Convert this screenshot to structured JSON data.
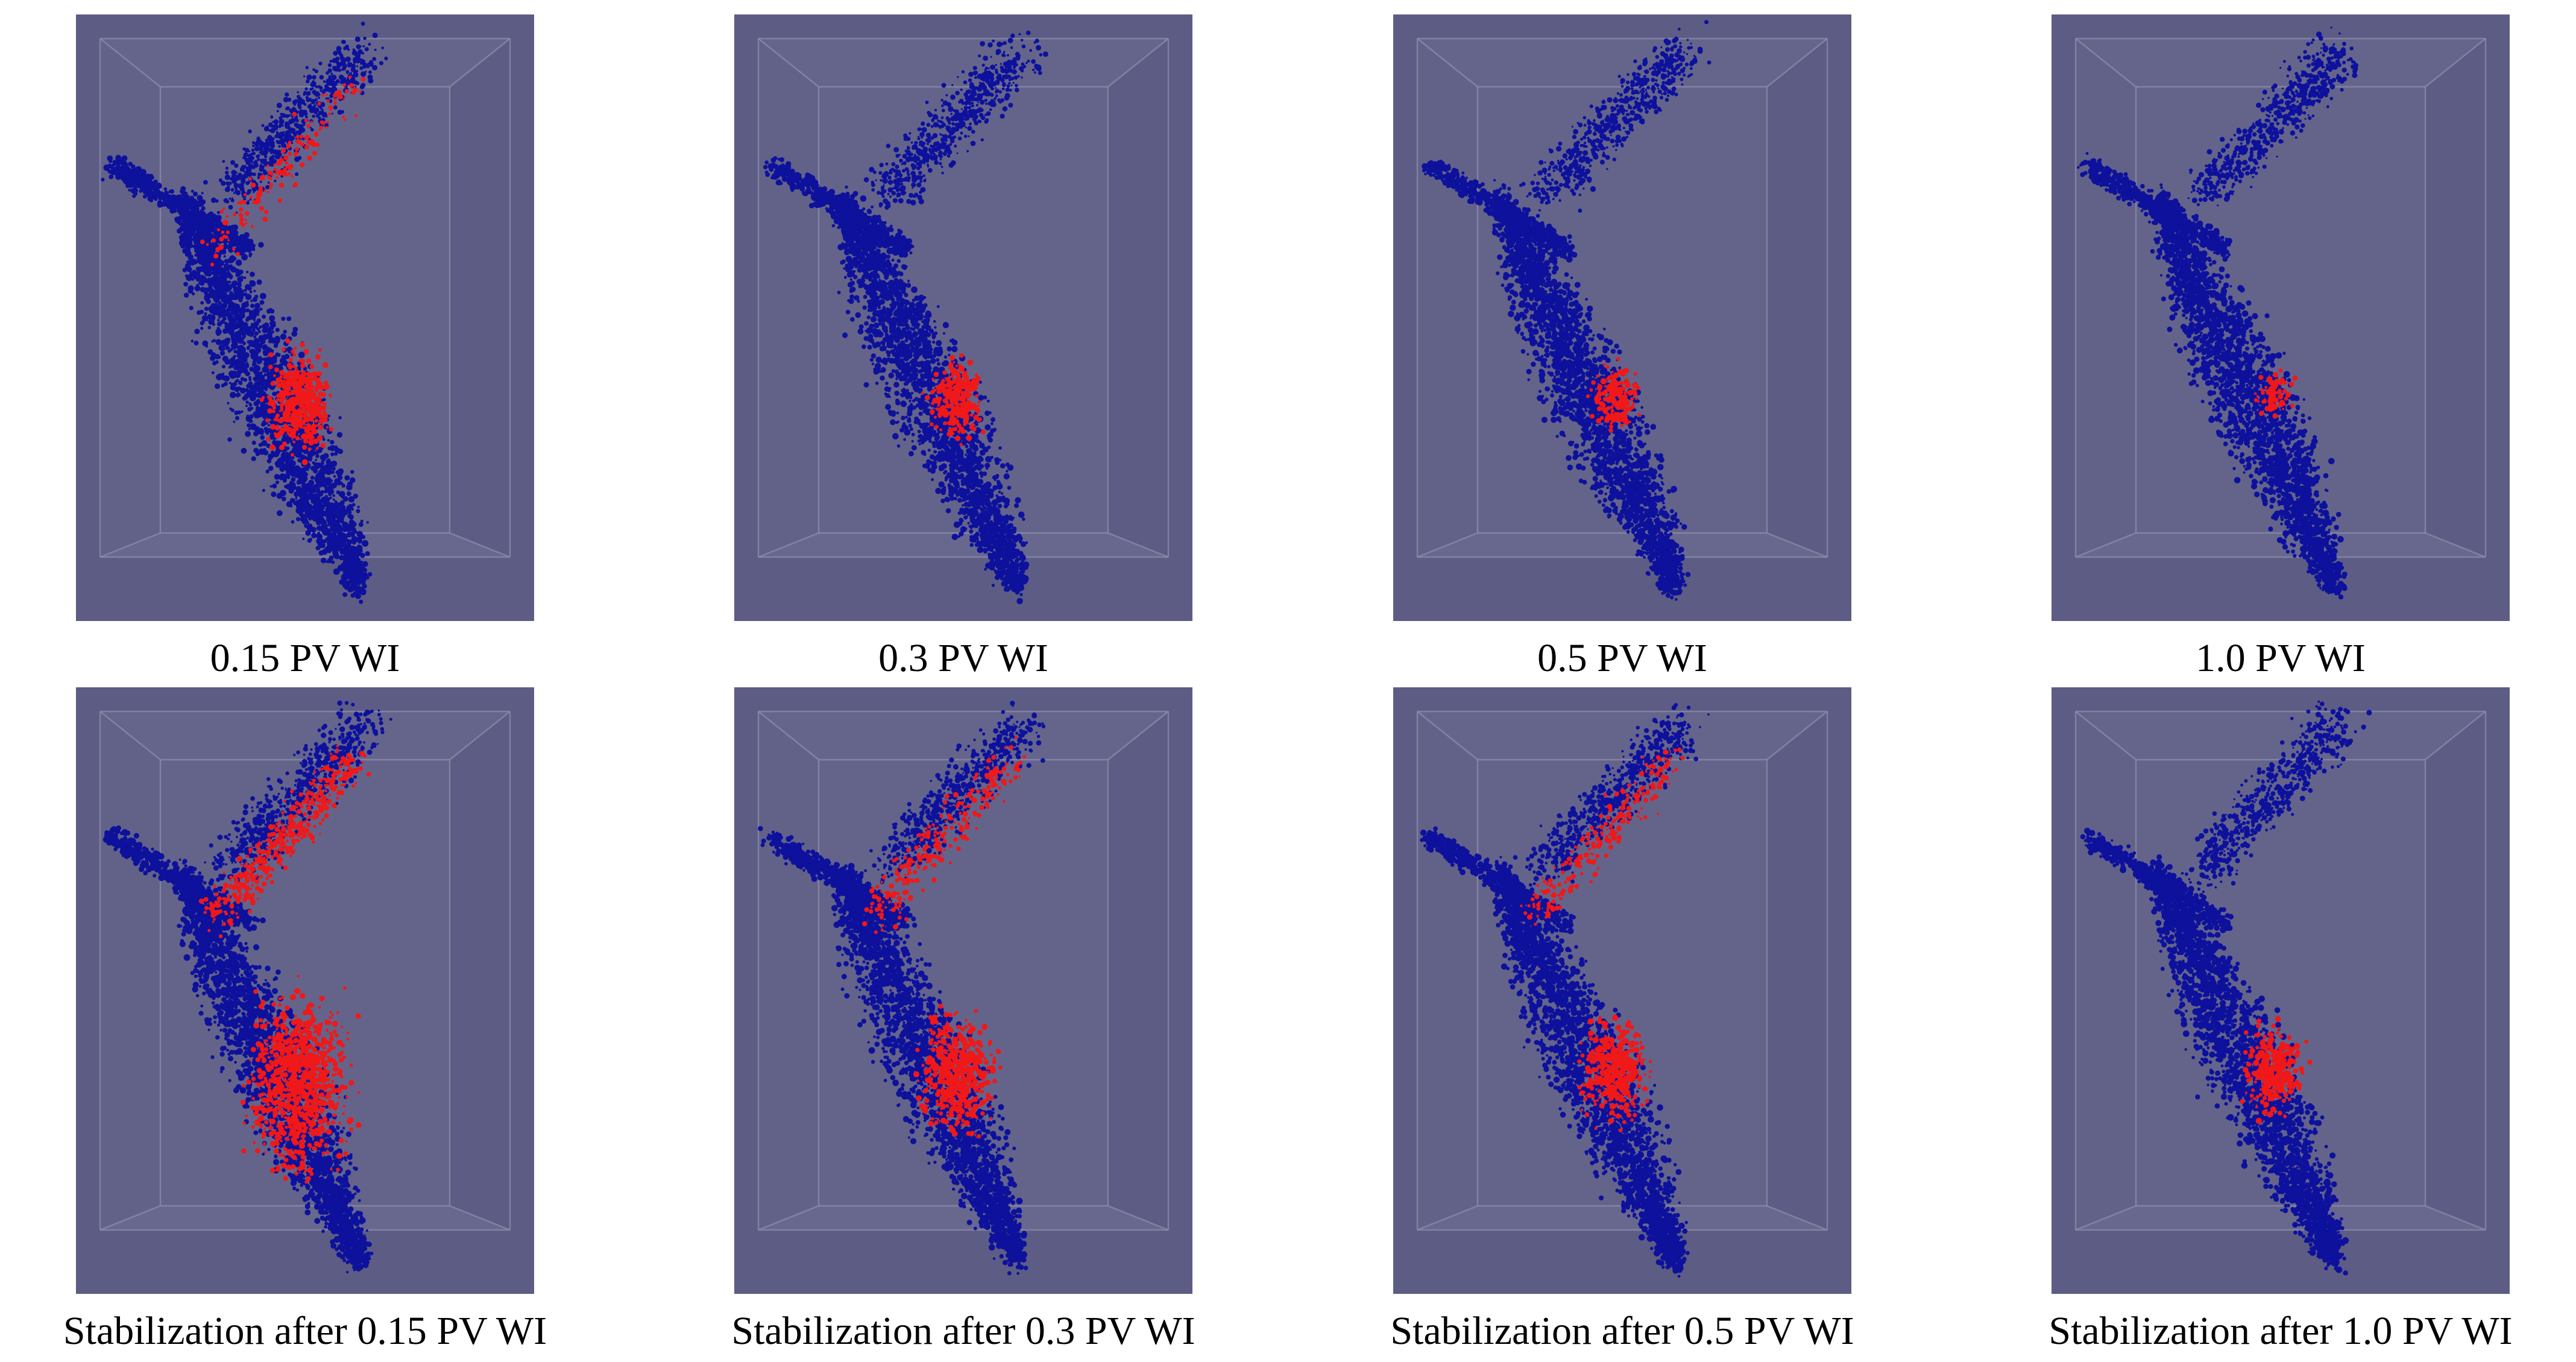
{
  "colors": {
    "background": "#ffffff",
    "scene_background": "#5c5c85",
    "rock_blue": "#0d119c",
    "phase_red": "#f01818",
    "box_edge": "#8e8eae",
    "caption_text": "#000000"
  },
  "panels": [
    {
      "caption": "0.15 PV WI",
      "red_amount": 0.45,
      "red_top_amount": 0.35
    },
    {
      "caption": "0.3 PV WI",
      "red_amount": 0.3,
      "red_top_amount": 0.0
    },
    {
      "caption": "0.5 PV WI",
      "red_amount": 0.2,
      "red_top_amount": 0.0
    },
    {
      "caption": "1.0 PV WI",
      "red_amount": 0.08,
      "red_top_amount": 0.0
    },
    {
      "caption": "Stabilization after 0.15 PV WI",
      "red_amount": 1.0,
      "red_top_amount": 1.0
    },
    {
      "caption": "Stabilization after 0.3 PV WI",
      "red_amount": 0.55,
      "red_top_amount": 0.6
    },
    {
      "caption": "Stabilization after 0.5 PV WI",
      "red_amount": 0.45,
      "red_top_amount": 0.5
    },
    {
      "caption": "Stabilization after 1.0 PV WI",
      "red_amount": 0.35,
      "red_top_amount": 0.0
    }
  ]
}
